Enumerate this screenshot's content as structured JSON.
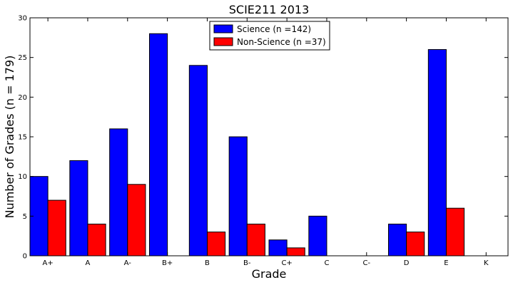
{
  "chart_data": {
    "type": "bar",
    "title": "SCIE211 2013",
    "xlabel": "Grade",
    "ylabel": "Number of Grades (n = 179)",
    "categories": [
      "A+",
      "A",
      "A-",
      "B+",
      "B",
      "B-",
      "C+",
      "C",
      "C-",
      "D",
      "E",
      "K"
    ],
    "series": [
      {
        "name": "Science (n =142)",
        "color": "#0000ff",
        "values": [
          10,
          12,
          16,
          28,
          24,
          15,
          2,
          5,
          0,
          4,
          26,
          0
        ]
      },
      {
        "name": "Non-Science (n =37)",
        "color": "#ff0000",
        "values": [
          7,
          4,
          9,
          0,
          3,
          4,
          1,
          0,
          0,
          3,
          6,
          0
        ]
      }
    ],
    "ylim": [
      0,
      30
    ],
    "yticks": [
      0,
      5,
      10,
      15,
      20,
      25,
      30
    ],
    "grid": false,
    "legend_position": "top-center"
  }
}
